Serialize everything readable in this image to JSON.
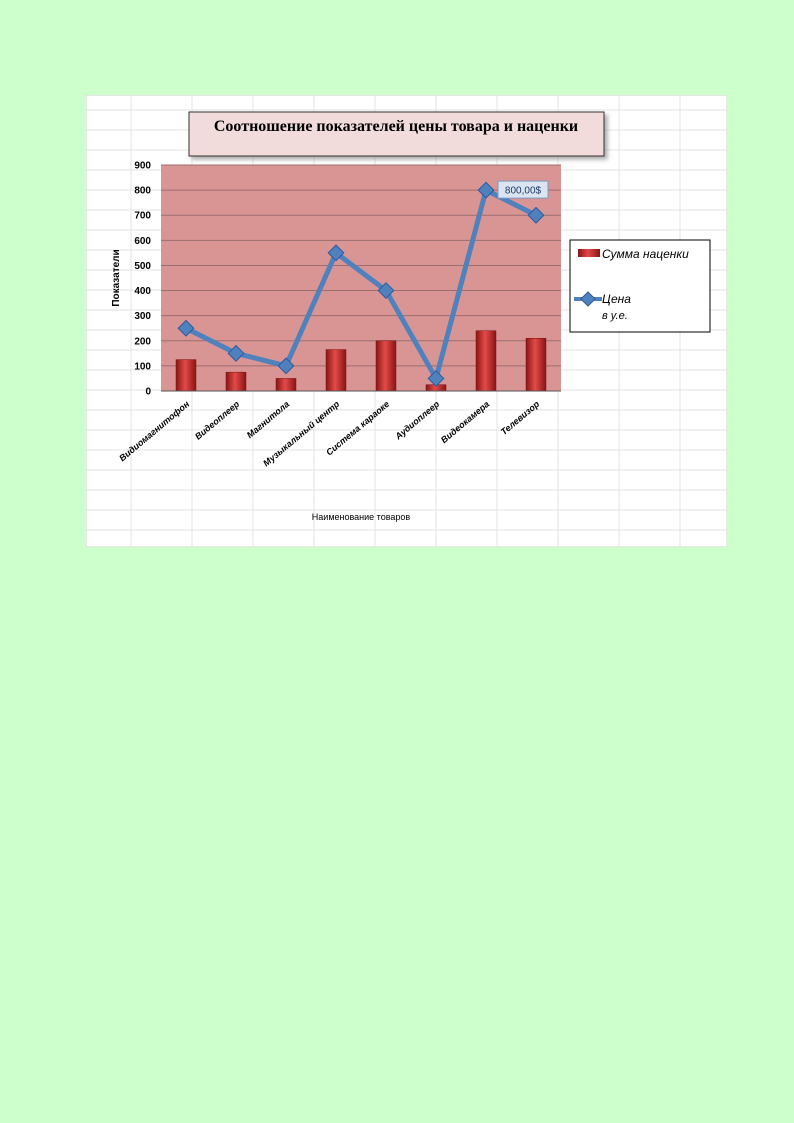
{
  "colors": {
    "page_background": "#ccffcc",
    "chart_area": "#ffffff",
    "plot_background": "#d99594",
    "bar": "#c0302e",
    "line": "#4f81bd",
    "title_box": "#f2dcdb"
  },
  "chart_data": {
    "type": "bar+line",
    "title": "Соотношение показателей цены  товара и наценки",
    "xlabel": "Наименование  товаров",
    "ylabel": "Показатели",
    "ylim": [
      0,
      900
    ],
    "yticks": [
      "0",
      "100",
      "200",
      "300",
      "400",
      "500",
      "600",
      "700",
      "800",
      "900"
    ],
    "grid": true,
    "legend_position": "right",
    "categories": [
      "Видиомагнитофон",
      "Видеоплеер",
      "Магнитола",
      "Музыкальный  центр",
      "Система караоке",
      "Аудиоплеер",
      "Видеокамера",
      "Телевизор"
    ],
    "series": [
      {
        "name": "Сумма наценки",
        "type": "bar",
        "values": [
          125,
          75,
          50,
          165,
          200,
          25,
          240,
          210
        ]
      },
      {
        "name_lines": [
          "Цена",
          "в у.е."
        ],
        "type": "line",
        "marker": "diamond",
        "values": [
          250,
          150,
          100,
          550,
          400,
          50,
          800,
          700
        ]
      }
    ],
    "annotations": [
      {
        "category": "Видеокамера",
        "text": "800,00$"
      }
    ]
  }
}
